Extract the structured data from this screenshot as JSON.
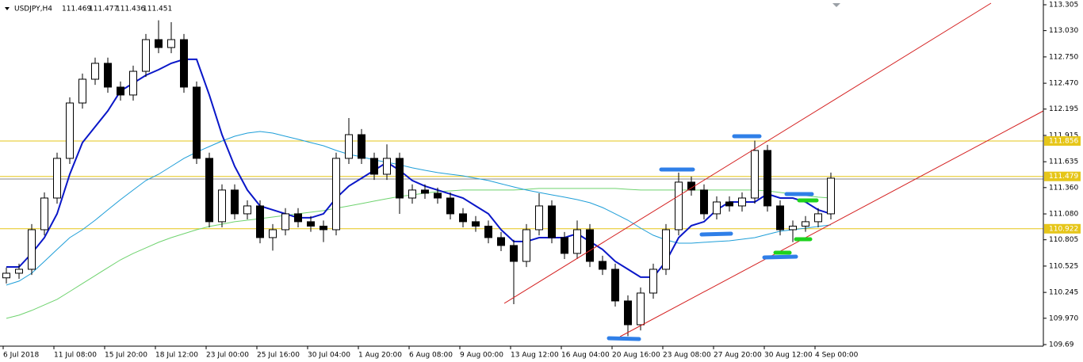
{
  "chart_data": {
    "type": "candlestick",
    "title": "USDJPY,H4",
    "quote": [
      111.469,
      111.477,
      111.436,
      111.451
    ],
    "categories": [
      "6 Jul 2018",
      null,
      null,
      null,
      "11 Jul 08:00",
      null,
      null,
      null,
      "15 Jul 20:00",
      null,
      null,
      null,
      "18 Jul 12:00",
      null,
      null,
      null,
      "23 Jul 00:00",
      null,
      null,
      null,
      "25 Jul 16:00",
      null,
      null,
      null,
      "30 Jul 04:00",
      null,
      null,
      null,
      "1 Aug 20:00",
      null,
      null,
      null,
      "6 Aug 08:00",
      null,
      null,
      null,
      "9 Aug 00:00",
      null,
      null,
      null,
      "13 Aug 12:00",
      null,
      null,
      null,
      "16 Aug 04:00",
      null,
      null,
      null,
      "20 Aug 16:00",
      null,
      null,
      null,
      "23 Aug 08:00",
      null,
      null,
      null,
      "27 Aug 20:00",
      null,
      null,
      null,
      "30 Aug 12:00",
      null,
      null,
      null,
      "4 Sep 00:00",
      null
    ],
    "open": [
      110.4,
      110.449,
      110.491,
      110.912,
      111.249,
      111.671,
      112.26,
      112.513,
      112.682,
      112.429,
      112.345,
      112.597,
      112.934,
      112.85,
      112.934,
      112.429,
      111.671,
      110.997,
      111.334,
      111.081,
      111.165,
      110.828,
      110.912,
      111.081,
      110.997,
      110.95,
      110.912,
      111.671,
      111.923,
      111.671,
      111.502,
      111.671,
      111.249,
      111.334,
      111.3,
      111.249,
      111.081,
      110.997,
      110.95,
      110.828,
      110.744,
      110.575,
      110.912,
      111.165,
      110.828,
      110.66,
      110.912,
      110.575,
      110.491,
      110.154,
      109.901,
      110.238,
      110.491,
      110.912,
      111.418,
      111.334,
      111.081,
      111.207,
      111.165,
      111.249,
      111.755,
      111.165,
      110.912,
      110.95,
      110.997,
      111.081
    ],
    "high": [
      110.509,
      110.551,
      110.972,
      111.309,
      111.731,
      112.32,
      112.573,
      112.742,
      112.742,
      112.489,
      112.657,
      112.994,
      113.14,
      113.12,
      112.994,
      112.489,
      111.731,
      111.394,
      111.394,
      111.225,
      111.225,
      110.972,
      111.141,
      111.141,
      111.057,
      111.01,
      111.731,
      112.1,
      111.983,
      111.731,
      111.82,
      111.731,
      111.394,
      111.394,
      111.36,
      111.309,
      111.141,
      111.057,
      111.01,
      110.888,
      110.804,
      110.972,
      111.3,
      111.225,
      110.888,
      111.01,
      110.972,
      110.635,
      110.551,
      110.214,
      110.298,
      110.551,
      110.972,
      111.52,
      111.478,
      111.394,
      111.267,
      111.267,
      111.309,
      111.86,
      111.815,
      111.225,
      111.01,
      111.057,
      111.141,
      111.52
    ],
    "low": [
      110.34,
      110.389,
      110.431,
      110.852,
      111.189,
      111.611,
      112.2,
      112.453,
      112.369,
      112.285,
      112.285,
      112.537,
      112.79,
      112.79,
      112.369,
      111.611,
      110.937,
      110.937,
      111.021,
      111.021,
      110.768,
      110.69,
      110.852,
      110.937,
      110.89,
      110.78,
      110.852,
      111.611,
      111.611,
      111.442,
      111.442,
      111.08,
      111.189,
      111.24,
      111.189,
      111.021,
      110.937,
      110.89,
      110.768,
      110.684,
      110.12,
      110.515,
      110.852,
      110.768,
      110.6,
      110.6,
      110.515,
      110.431,
      110.094,
      109.78,
      109.841,
      110.178,
      110.431,
      110.852,
      111.274,
      111.021,
      111.021,
      111.105,
      111.105,
      111.189,
      111.105,
      110.852,
      110.78,
      110.89,
      110.937,
      111.021
    ],
    "close": [
      110.449,
      110.491,
      110.912,
      111.249,
      111.671,
      112.26,
      112.513,
      112.682,
      112.429,
      112.345,
      112.597,
      112.934,
      112.85,
      112.934,
      112.429,
      111.671,
      110.997,
      111.334,
      111.081,
      111.165,
      110.828,
      110.912,
      111.081,
      110.997,
      110.95,
      110.912,
      111.671,
      111.923,
      111.671,
      111.502,
      111.671,
      111.249,
      111.334,
      111.3,
      111.249,
      111.081,
      110.997,
      110.95,
      110.828,
      110.744,
      110.575,
      110.912,
      111.165,
      110.828,
      110.66,
      110.912,
      110.575,
      110.491,
      110.154,
      109.901,
      110.238,
      110.491,
      110.912,
      111.418,
      111.334,
      111.081,
      111.207,
      111.165,
      111.249,
      111.755,
      111.165,
      110.912,
      110.95,
      110.997,
      111.081,
      111.46
    ],
    "series": [
      {
        "color": "#6fd36f",
        "values": [
          109.969,
          110.003,
          110.053,
          110.112,
          110.171,
          110.255,
          110.34,
          110.424,
          110.508,
          110.592,
          110.66,
          110.719,
          110.778,
          110.828,
          110.87,
          110.912,
          110.946,
          110.971,
          110.997,
          111.013,
          111.03,
          111.047,
          111.064,
          111.081,
          111.098,
          111.115,
          111.14,
          111.165,
          111.19,
          111.216,
          111.241,
          111.266,
          111.283,
          111.3,
          111.317,
          111.325,
          111.334,
          111.334,
          111.334,
          111.334,
          111.334,
          111.342,
          111.351,
          111.351,
          111.351,
          111.351,
          111.351,
          111.351,
          111.351,
          111.342,
          111.334,
          111.334,
          111.334,
          111.334,
          111.334,
          111.334,
          111.334,
          111.334,
          111.334,
          111.334,
          111.325,
          111.308,
          111.292,
          111.275,
          111.258,
          111.249
        ]
      },
      {
        "color": "#1e9ed8",
        "values": [
          110.323,
          110.365,
          110.449,
          110.575,
          110.702,
          110.828,
          110.912,
          111.013,
          111.123,
          111.232,
          111.334,
          111.435,
          111.502,
          111.586,
          111.671,
          111.738,
          111.797,
          111.856,
          111.906,
          111.94,
          111.957,
          111.94,
          111.906,
          111.873,
          111.839,
          111.805,
          111.755,
          111.713,
          111.687,
          111.654,
          111.629,
          111.603,
          111.57,
          111.544,
          111.519,
          111.502,
          111.485,
          111.46,
          111.435,
          111.401,
          111.367,
          111.334,
          111.308,
          111.283,
          111.258,
          111.232,
          111.199,
          111.148,
          111.081,
          111.013,
          110.929,
          110.853,
          110.803,
          110.769,
          110.769,
          110.778,
          110.786,
          110.794,
          110.811,
          110.828,
          110.862,
          110.896,
          110.912,
          110.929,
          110.946,
          110.963
        ]
      },
      {
        "color": "#0a17c8",
        "values": [
          110.516,
          110.516,
          110.66,
          110.828,
          111.081,
          111.502,
          111.839,
          112.007,
          112.176,
          112.387,
          112.471,
          112.555,
          112.614,
          112.682,
          112.724,
          112.724,
          112.345,
          111.923,
          111.586,
          111.334,
          111.165,
          111.123,
          111.081,
          111.039,
          111.039,
          111.081,
          111.249,
          111.376,
          111.46,
          111.544,
          111.629,
          111.544,
          111.435,
          111.376,
          111.334,
          111.292,
          111.249,
          111.165,
          111.081,
          110.912,
          110.786,
          110.786,
          110.828,
          110.828,
          110.828,
          110.87,
          110.786,
          110.702,
          110.575,
          110.491,
          110.407,
          110.407,
          110.575,
          110.828,
          110.955,
          110.997,
          111.123,
          111.207,
          111.207,
          111.207,
          111.292,
          111.249,
          111.249,
          111.207,
          111.123,
          111.081
        ]
      }
    ],
    "levels": [
      {
        "value": 111.856,
        "color": "#e6c619"
      },
      {
        "value": 111.479,
        "color": "#e6c619"
      },
      {
        "value": 110.922,
        "color": "#e6c619"
      }
    ],
    "ylim": [
      109.69,
      113.305
    ],
    "yticks": [
      109.69,
      {
        "value": 109.97,
        "label": "109.970"
      },
      110.245,
      110.525,
      110.805,
      {
        "value": 111.08,
        "label": "111.080"
      },
      {
        "value": 111.36,
        "label": "111.360"
      },
      111.635,
      111.915,
      112.195,
      {
        "value": 112.47,
        "label": "112.470"
      },
      {
        "value": 112.75,
        "label": "112.750"
      },
      {
        "value": 113.03,
        "label": "113.030"
      },
      113.305
    ]
  }
}
